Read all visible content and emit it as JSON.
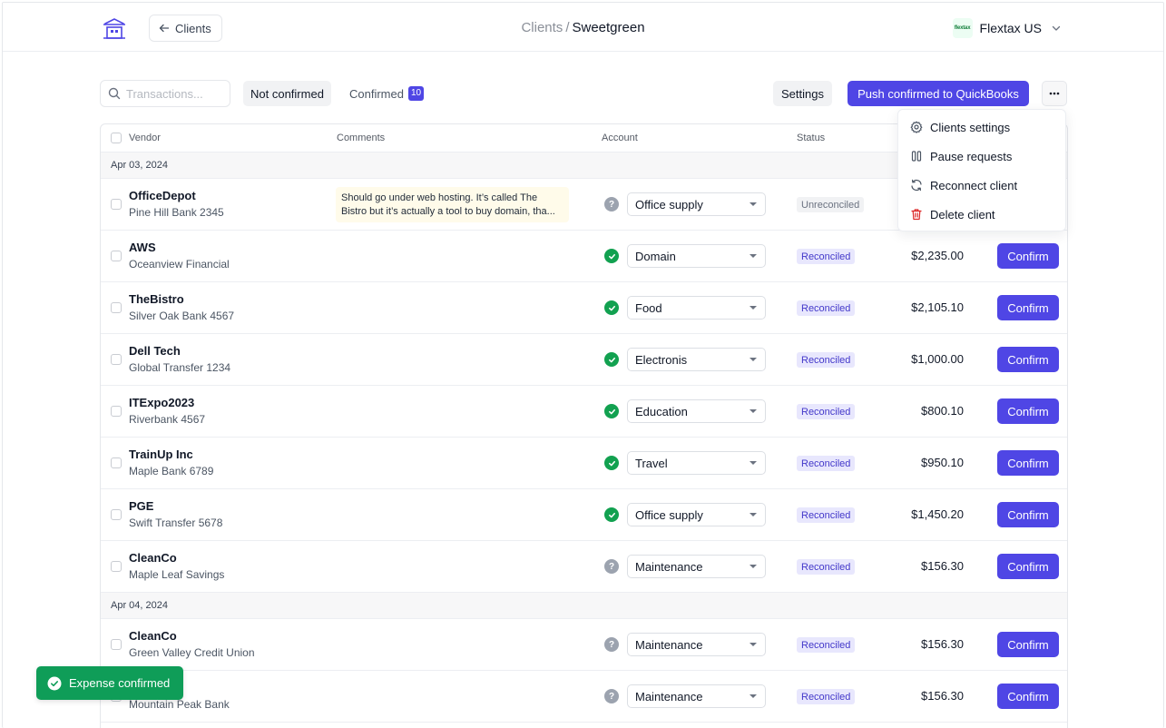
{
  "header": {
    "back_label": "Clients",
    "breadcrumb_parent": "Clients",
    "breadcrumb_sep": "/",
    "breadcrumb_current": "Sweetgreen",
    "org_logo_text": "flextax",
    "org_name": "Flextax US"
  },
  "toolbar": {
    "search_placeholder": "Transactions...",
    "tab_not_confirmed": "Not confirmed",
    "tab_confirmed": "Confirmed",
    "confirmed_count": "10",
    "settings_label": "Settings",
    "push_label": "Push confirmed to QuickBooks"
  },
  "table": {
    "headers": {
      "vendor": "Vendor",
      "comments": "Comments",
      "account": "Account",
      "status": "Status"
    },
    "groups": [
      {
        "date": "Apr 03, 2024",
        "rows": [
          {
            "vendor": "OfficeDepot",
            "bank": "Pine Hill Bank 2345",
            "comment": "Should go under web hosting. It’s called The Bistro but it’s actually a tool to buy domain, tha...",
            "account_state": "unknown",
            "account": "Office supply",
            "status": "Unreconciled",
            "amount": "",
            "confirm": ""
          },
          {
            "vendor": "AWS",
            "bank": "Oceanview Financial",
            "comment": "",
            "account_state": "ok",
            "account": "Domain",
            "status": "Reconciled",
            "amount": "$2,235.00",
            "confirm": "Confirm"
          },
          {
            "vendor": "TheBistro",
            "bank": "Silver Oak Bank 4567",
            "comment": "",
            "account_state": "ok",
            "account": "Food",
            "status": "Reconciled",
            "amount": "$2,105.10",
            "confirm": "Confirm"
          },
          {
            "vendor": "Dell Tech",
            "bank": "Global Transfer 1234",
            "comment": "",
            "account_state": "ok",
            "account": "Electronis",
            "status": "Reconciled",
            "amount": "$1,000.00",
            "confirm": "Confirm"
          },
          {
            "vendor": "ITExpo2023",
            "bank": "Riverbank 4567",
            "comment": "",
            "account_state": "ok",
            "account": "Education",
            "status": "Reconciled",
            "amount": "$800.10",
            "confirm": "Confirm"
          },
          {
            "vendor": "TrainUp Inc",
            "bank": "Maple Bank 6789",
            "comment": "",
            "account_state": "ok",
            "account": "Travel",
            "status": "Reconciled",
            "amount": "$950.10",
            "confirm": "Confirm"
          },
          {
            "vendor": "PGE",
            "bank": "Swift Transfer 5678",
            "comment": "",
            "account_state": "ok",
            "account": "Office supply",
            "status": "Reconciled",
            "amount": "$1,450.20",
            "confirm": "Confirm"
          },
          {
            "vendor": "CleanCo",
            "bank": "Maple Leaf Savings",
            "comment": "",
            "account_state": "unknown",
            "account": "Maintenance",
            "status": "Reconciled",
            "amount": "$156.30",
            "confirm": "Confirm"
          }
        ]
      },
      {
        "date": "Apr 04, 2024",
        "rows": [
          {
            "vendor": "CleanCo",
            "bank": "Green Valley Credit Union",
            "comment": "",
            "account_state": "unknown",
            "account": "Maintenance",
            "status": "Reconciled",
            "amount": "$156.30",
            "confirm": "Confirm"
          },
          {
            "vendor": "",
            "bank": "Mountain Peak Bank",
            "comment": "",
            "account_state": "unknown",
            "account": "Maintenance",
            "status": "Reconciled",
            "amount": "$156.30",
            "confirm": "Confirm"
          }
        ]
      }
    ]
  },
  "menu": {
    "items": [
      {
        "label": "Clients settings",
        "icon": "gear-icon"
      },
      {
        "label": "Pause requests",
        "icon": "pause-icon"
      },
      {
        "label": "Reconnect client",
        "icon": "refresh-icon"
      },
      {
        "label": "Delete client",
        "icon": "trash-icon"
      }
    ]
  },
  "toast": {
    "message": "Expense confirmed"
  },
  "colors": {
    "accent": "#4f46e5",
    "success": "#12a150",
    "toast": "#0f9d58",
    "danger": "#dc2626"
  }
}
